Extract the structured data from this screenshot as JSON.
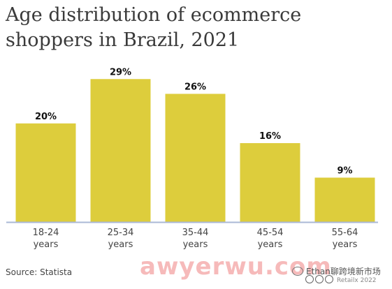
{
  "title": "Age distribution of ecommerce shoppers in Brazil, 2021",
  "source": "Source: Statista",
  "watermark": "awyerwu.com",
  "wechat_handle": "Ethan聊跨境新市场",
  "credit": "Retailx 2022",
  "colors": {
    "bar": "#ddcd3c",
    "baseline": "#aab8d6",
    "text": "#3a3a3a"
  },
  "chart_data": {
    "type": "bar",
    "title": "Age distribution of ecommerce shoppers in Brazil, 2021",
    "xlabel": "",
    "ylabel": "",
    "categories": [
      [
        "18-24",
        "years"
      ],
      [
        "25-34",
        "years"
      ],
      [
        "35-44",
        "years"
      ],
      [
        "45-54",
        "years"
      ],
      [
        "55-64",
        "years"
      ]
    ],
    "values": [
      20,
      29,
      26,
      16,
      9
    ],
    "data_labels": [
      "20%",
      "29%",
      "26%",
      "16%",
      "9%"
    ],
    "ylim": [
      0,
      29
    ],
    "grid": false,
    "legend": "none"
  }
}
